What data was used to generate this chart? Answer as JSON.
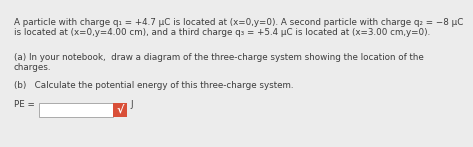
{
  "background_color": "#ececec",
  "line1": "A particle with charge q₁ = +4.7 μC is located at (x=0,y=0). A second particle with charge q₂ = −8 μC",
  "line2": "is located at (x=0,y=4.00 cm), and a third charge q₃ = +5.4 μC is located at (x=3.00 cm,y=0).",
  "line3": "(a) In your notebook,  draw a diagram of the three-charge system showing the location of the",
  "line4": "charges.",
  "line5": "(b)   Calculate the potential energy of this three-charge system.",
  "line6": "PE =",
  "line7": "J",
  "text_color": "#3d3d3d",
  "check_color": "#d94f38",
  "fontsize": 6.3
}
